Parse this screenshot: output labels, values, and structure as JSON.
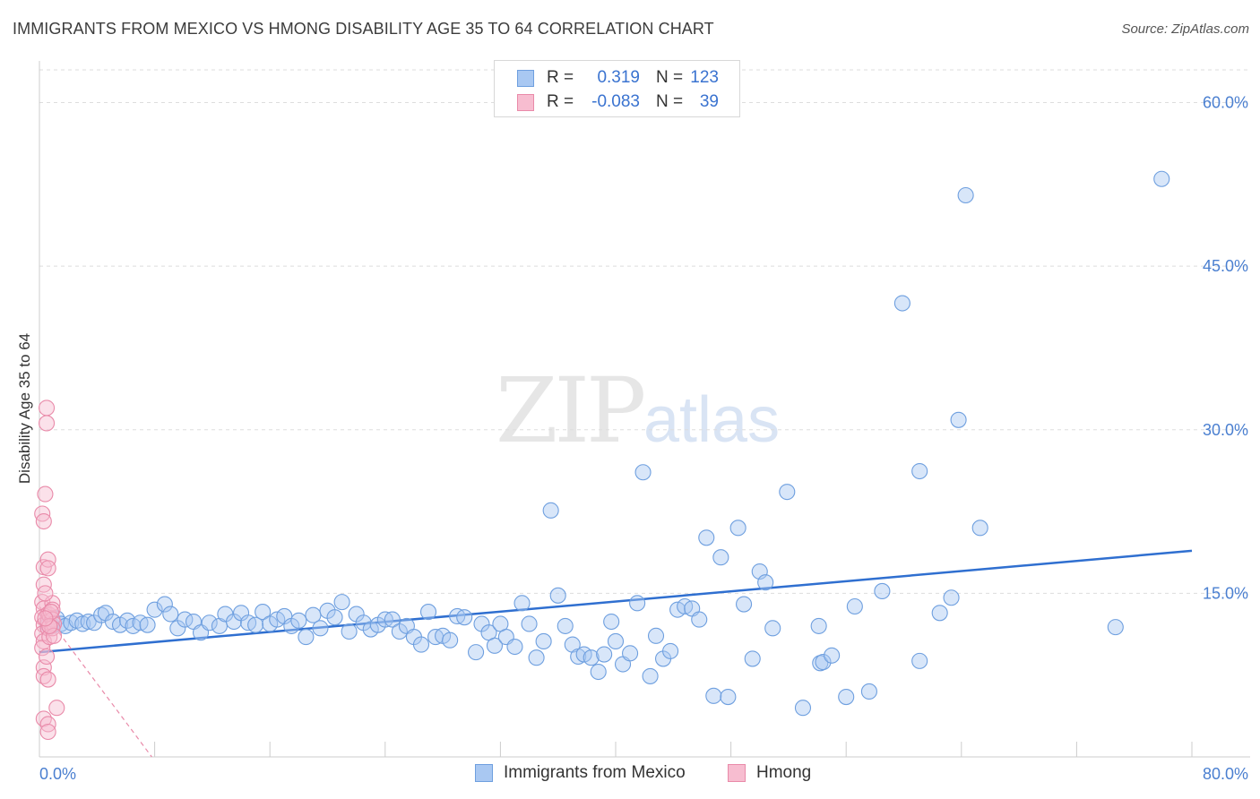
{
  "title": "IMMIGRANTS FROM MEXICO VS HMONG DISABILITY AGE 35 TO 64 CORRELATION CHART",
  "source": "Source: ZipAtlas.com",
  "watermark": {
    "zip": "ZIP",
    "atlas": "atlas"
  },
  "legend": {
    "rows": [
      {
        "r_label": "R =",
        "r_value": "0.319",
        "n_label": "N =",
        "n_value": "123",
        "color": "#a9c8f2",
        "border": "#6e9fdf"
      },
      {
        "r_label": "R =",
        "r_value": "-0.083",
        "n_label": "N =",
        "n_value": "39",
        "color": "#f7bdd0",
        "border": "#e98aa9"
      }
    ]
  },
  "bottom_legend": [
    {
      "label": "Immigrants from Mexico",
      "color": "#a9c8f2",
      "border": "#6e9fdf"
    },
    {
      "label": "Hmong",
      "color": "#f7bdd0",
      "border": "#e98aa9"
    }
  ],
  "chart_data": {
    "type": "scatter",
    "title": "IMMIGRANTS FROM MEXICO VS HMONG DISABILITY AGE 35 TO 64 CORRELATION CHART",
    "xlabel": "",
    "ylabel": "Disability Age 35 to 64",
    "xlim": [
      0,
      80
    ],
    "ylim": [
      0,
      63
    ],
    "x_tick_labels": [
      "0.0%",
      "80.0%"
    ],
    "y_ticks": [
      15,
      30,
      45,
      60
    ],
    "y_tick_labels": [
      "15.0%",
      "30.0%",
      "45.0%",
      "60.0%"
    ],
    "grid": true,
    "series": [
      {
        "name": "Immigrants from Mexico",
        "color": "#6e9fdf",
        "trend": {
          "x": [
            0,
            80
          ],
          "y": [
            9.6,
            18.9
          ],
          "style": "solid"
        },
        "points": [
          [
            0.6,
            12.1
          ],
          [
            0.9,
            12.0
          ],
          [
            1.2,
            12.7
          ],
          [
            1.5,
            12.2
          ],
          [
            1.8,
            12.0
          ],
          [
            2.2,
            12.3
          ],
          [
            2.6,
            12.5
          ],
          [
            3.0,
            12.2
          ],
          [
            3.4,
            12.4
          ],
          [
            3.8,
            12.3
          ],
          [
            4.3,
            13.0
          ],
          [
            4.6,
            13.2
          ],
          [
            5.1,
            12.4
          ],
          [
            5.6,
            12.1
          ],
          [
            6.1,
            12.5
          ],
          [
            6.5,
            12.0
          ],
          [
            7.0,
            12.3
          ],
          [
            7.5,
            12.1
          ],
          [
            8.0,
            13.5
          ],
          [
            8.7,
            14.0
          ],
          [
            9.1,
            13.1
          ],
          [
            9.6,
            11.8
          ],
          [
            10.1,
            12.6
          ],
          [
            10.7,
            12.4
          ],
          [
            11.2,
            11.4
          ],
          [
            11.8,
            12.3
          ],
          [
            12.5,
            12.0
          ],
          [
            12.9,
            13.1
          ],
          [
            13.5,
            12.4
          ],
          [
            14.0,
            13.2
          ],
          [
            14.5,
            12.3
          ],
          [
            15.0,
            12.1
          ],
          [
            15.5,
            13.3
          ],
          [
            16.0,
            12.2
          ],
          [
            16.5,
            12.6
          ],
          [
            17.0,
            12.9
          ],
          [
            17.5,
            12.0
          ],
          [
            18.0,
            12.5
          ],
          [
            18.5,
            11.0
          ],
          [
            19.0,
            13.0
          ],
          [
            19.5,
            11.8
          ],
          [
            20.0,
            13.4
          ],
          [
            20.5,
            12.8
          ],
          [
            21.0,
            14.2
          ],
          [
            21.5,
            11.5
          ],
          [
            22.0,
            13.1
          ],
          [
            22.5,
            12.3
          ],
          [
            23.0,
            11.7
          ],
          [
            23.5,
            12.1
          ],
          [
            24.0,
            12.6
          ],
          [
            24.5,
            12.6
          ],
          [
            25.0,
            11.5
          ],
          [
            25.5,
            12.0
          ],
          [
            26.0,
            11.0
          ],
          [
            26.5,
            10.3
          ],
          [
            27.0,
            13.3
          ],
          [
            27.5,
            11.0
          ],
          [
            28.0,
            11.1
          ],
          [
            28.5,
            10.7
          ],
          [
            29.0,
            12.9
          ],
          [
            29.5,
            12.8
          ],
          [
            30.3,
            9.6
          ],
          [
            30.7,
            12.2
          ],
          [
            31.2,
            11.4
          ],
          [
            31.6,
            10.2
          ],
          [
            32.0,
            12.2
          ],
          [
            32.4,
            11.0
          ],
          [
            33.0,
            10.1
          ],
          [
            33.5,
            14.1
          ],
          [
            34.0,
            12.2
          ],
          [
            34.5,
            9.1
          ],
          [
            35.0,
            10.6
          ],
          [
            35.5,
            22.6
          ],
          [
            36.0,
            14.8
          ],
          [
            36.5,
            12.0
          ],
          [
            37.0,
            10.3
          ],
          [
            37.4,
            9.2
          ],
          [
            37.8,
            9.4
          ],
          [
            38.3,
            9.1
          ],
          [
            38.8,
            7.8
          ],
          [
            39.2,
            9.4
          ],
          [
            39.7,
            12.4
          ],
          [
            40.0,
            10.6
          ],
          [
            40.5,
            8.5
          ],
          [
            41.0,
            9.5
          ],
          [
            41.5,
            14.1
          ],
          [
            41.9,
            26.1
          ],
          [
            42.4,
            7.4
          ],
          [
            42.8,
            11.1
          ],
          [
            43.3,
            9.0
          ],
          [
            43.8,
            9.7
          ],
          [
            44.3,
            13.5
          ],
          [
            44.8,
            13.8
          ],
          [
            45.3,
            13.6
          ],
          [
            45.8,
            12.6
          ],
          [
            46.3,
            20.1
          ],
          [
            46.8,
            5.6
          ],
          [
            47.3,
            18.3
          ],
          [
            47.8,
            5.5
          ],
          [
            48.5,
            21.0
          ],
          [
            48.9,
            14.0
          ],
          [
            49.5,
            9.0
          ],
          [
            50.0,
            17.0
          ],
          [
            50.4,
            16.0
          ],
          [
            50.9,
            11.8
          ],
          [
            51.9,
            24.3
          ],
          [
            53.0,
            4.5
          ],
          [
            54.1,
            12.0
          ],
          [
            54.2,
            8.6
          ],
          [
            54.4,
            8.7
          ],
          [
            55.0,
            9.3
          ],
          [
            56.0,
            5.5
          ],
          [
            56.6,
            13.8
          ],
          [
            57.6,
            6.0
          ],
          [
            58.5,
            15.2
          ],
          [
            59.9,
            41.6
          ],
          [
            61.1,
            26.2
          ],
          [
            61.1,
            8.8
          ],
          [
            62.5,
            13.2
          ],
          [
            63.3,
            14.6
          ],
          [
            63.8,
            30.9
          ],
          [
            64.3,
            51.5
          ],
          [
            65.3,
            21.0
          ],
          [
            74.7,
            11.9
          ],
          [
            77.9,
            53.0
          ]
        ]
      },
      {
        "name": "Hmong",
        "color": "#e98aa9",
        "trend": {
          "x": [
            0,
            7.8
          ],
          "y": [
            13.8,
            0
          ],
          "style": "dashed"
        },
        "points": [
          [
            0.2,
            22.3
          ],
          [
            0.3,
            21.6
          ],
          [
            0.3,
            17.4
          ],
          [
            0.3,
            15.8
          ],
          [
            0.2,
            14.2
          ],
          [
            0.3,
            13.6
          ],
          [
            0.2,
            12.8
          ],
          [
            0.3,
            12.1
          ],
          [
            0.2,
            11.3
          ],
          [
            0.3,
            10.6
          ],
          [
            0.2,
            10.0
          ],
          [
            0.3,
            8.2
          ],
          [
            0.3,
            7.4
          ],
          [
            0.3,
            3.5
          ],
          [
            0.4,
            24.1
          ],
          [
            0.5,
            32.0
          ],
          [
            0.5,
            30.6
          ],
          [
            0.6,
            18.1
          ],
          [
            0.6,
            17.3
          ],
          [
            0.6,
            13.1
          ],
          [
            0.6,
            12.4
          ],
          [
            0.7,
            13.0
          ],
          [
            0.6,
            11.8
          ],
          [
            0.7,
            11.0
          ],
          [
            0.6,
            7.1
          ],
          [
            0.6,
            3.0
          ],
          [
            0.6,
            2.3
          ],
          [
            0.9,
            14.1
          ],
          [
            0.9,
            13.5
          ],
          [
            0.9,
            12.6
          ],
          [
            1.0,
            12.2
          ],
          [
            0.9,
            11.8
          ],
          [
            1.0,
            11.1
          ],
          [
            1.2,
            4.5
          ],
          [
            0.4,
            15.0
          ],
          [
            0.5,
            9.2
          ],
          [
            0.8,
            13.3
          ],
          [
            0.7,
            12.0
          ],
          [
            0.4,
            12.7
          ]
        ]
      }
    ]
  }
}
